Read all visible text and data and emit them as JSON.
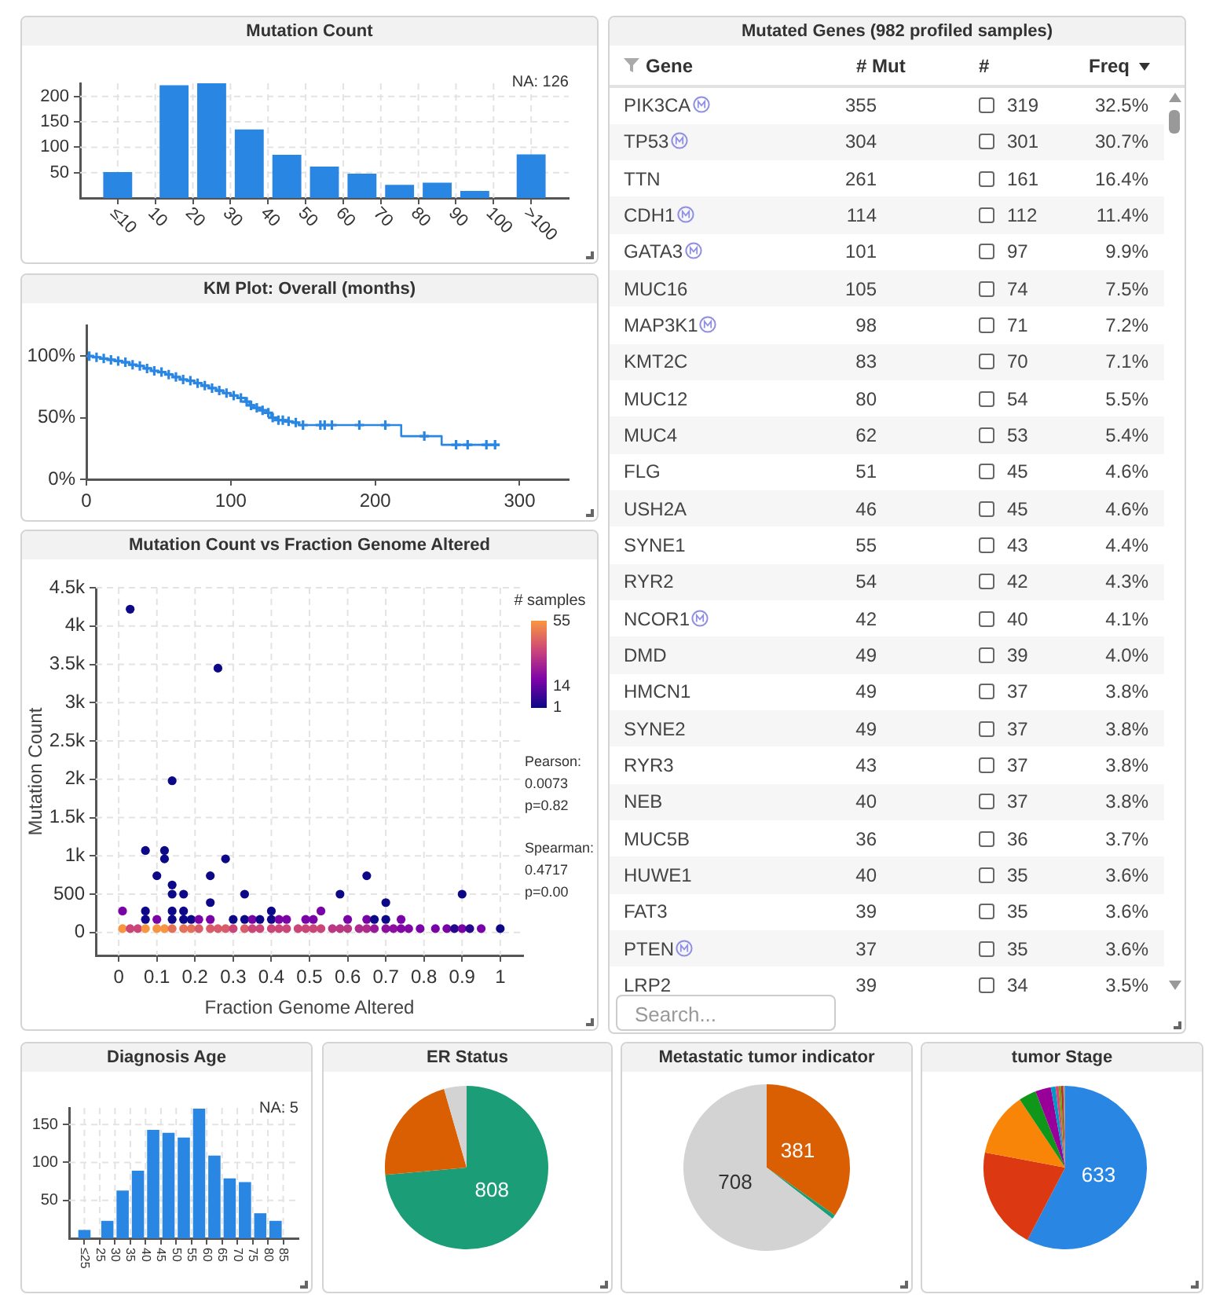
{
  "chart_data": [
    {
      "type": "bar",
      "title": "Mutation Count",
      "x": [
        0,
        15,
        25,
        35,
        45,
        55,
        65,
        75,
        85,
        95,
        110
      ],
      "values": [
        51,
        222,
        226,
        135,
        85,
        62,
        48,
        26,
        30,
        14,
        86
      ],
      "color": "#2986e2",
      "xlim": [
        -10,
        120
      ],
      "xticks": [
        {
          "value": 0,
          "label": "≤10"
        },
        10,
        20,
        30,
        40,
        50,
        60,
        70,
        80,
        90,
        100,
        {
          "value": 110,
          "label": ">100"
        }
      ],
      "ylim": [
        0,
        226
      ],
      "yticks": [
        50,
        100,
        150,
        200
      ],
      "grid": true,
      "annotations": [
        "NA: 126"
      ]
    },
    {
      "type": "other",
      "title": "Mutated Genes (982 profiled samples)",
      "xlabel": "Gene",
      "categories": [
        "PIK3CA",
        "TP53",
        "TTN",
        "CDH1",
        "GATA3",
        "MUC16",
        "MAP3K1",
        "KMT2C",
        "MUC12",
        "MUC4",
        "FLG",
        "USH2A",
        "SYNE1",
        "RYR2",
        "NCOR1",
        "DMD",
        "HMCN1",
        "SYNE2",
        "RYR3",
        "NEB",
        "MUC5B",
        "HUWE1",
        "FAT3",
        "PTEN",
        "LRP2"
      ],
      "series": [
        {
          "colors": [
            "#ffffff",
            "#f6f6f6",
            "#ffffff",
            "#f6f6f6",
            "#ffffff",
            "#f6f6f6",
            "#ffffff",
            "#f6f6f6",
            "#ffffff",
            "#f6f6f6",
            "#ffffff",
            "#f6f6f6",
            "#ffffff",
            "#f6f6f6",
            "#ffffff",
            "#f6f6f6",
            "#ffffff",
            "#f6f6f6",
            "#ffffff",
            "#f6f6f6",
            "#ffffff",
            "#f6f6f6",
            "#ffffff",
            "#f6f6f6",
            "#ffffff"
          ],
          "values": [
            355,
            304,
            261,
            114,
            101,
            105,
            98,
            83,
            80,
            62,
            51,
            46,
            55,
            54,
            42,
            49,
            49,
            49,
            43,
            40,
            36,
            40,
            39,
            37,
            39
          ]
        },
        {
          "colors": [
            "#ffffff",
            "#f6f6f6",
            "#ffffff",
            "#f6f6f6",
            "#ffffff",
            "#f6f6f6",
            "#ffffff",
            "#f6f6f6",
            "#ffffff",
            "#f6f6f6",
            "#ffffff",
            "#f6f6f6",
            "#ffffff",
            "#f6f6f6",
            "#ffffff",
            "#f6f6f6",
            "#ffffff",
            "#f6f6f6",
            "#ffffff",
            "#f6f6f6",
            "#ffffff",
            "#f6f6f6",
            "#ffffff",
            "#f6f6f6",
            "#ffffff"
          ],
          "values": [
            319,
            301,
            161,
            112,
            97,
            74,
            71,
            70,
            54,
            53,
            45,
            45,
            43,
            42,
            40,
            39,
            37,
            37,
            37,
            37,
            36,
            35,
            35,
            35,
            34
          ]
        },
        {
          "colors": [
            "#ffffff",
            "#f6f6f6",
            "#ffffff",
            "#f6f6f6",
            "#ffffff",
            "#f6f6f6",
            "#ffffff",
            "#f6f6f6",
            "#ffffff",
            "#f6f6f6",
            "#ffffff",
            "#f6f6f6",
            "#ffffff",
            "#f6f6f6",
            "#ffffff",
            "#f6f6f6",
            "#ffffff",
            "#f6f6f6",
            "#ffffff",
            "#f6f6f6",
            "#ffffff",
            "#f6f6f6",
            "#ffffff",
            "#f6f6f6",
            "#ffffff"
          ],
          "values": [
            32.5,
            30.7,
            16.4,
            11.4,
            9.9,
            7.5,
            7.2,
            7.1,
            5.5,
            5.4,
            4.6,
            4.6,
            4.4,
            4.3,
            4.1,
            4.0,
            3.8,
            3.8,
            3.8,
            3.8,
            3.7,
            3.6,
            3.6,
            3.6,
            3.5
          ],
          "value_labels": [
            "32.5%",
            "30.7%",
            "16.4%",
            "11.4%",
            "9.9%",
            "7.5%",
            "7.2%",
            "7.1%",
            "5.5%",
            "5.4%",
            "4.6%",
            "4.6%",
            "4.4%",
            "4.3%",
            "4.1%",
            "4.0%",
            "3.8%",
            "3.8%",
            "3.8%",
            "3.8%",
            "3.7%",
            "3.6%",
            "3.6%",
            "3.6%",
            "3.5%"
          ]
        }
      ],
      "data_labels": true,
      "annotations": [
        "# Mut",
        "#",
        "Freq",
        "Search..."
      ]
    },
    {
      "type": "step",
      "title": "KM Plot: Overall (months)",
      "series": [
        {
          "type": "step",
          "color": "#2986e2",
          "x": [
            0,
            5,
            10,
            15,
            20,
            25,
            30,
            35,
            40,
            45,
            50,
            55,
            60,
            65,
            70,
            75,
            80,
            85,
            90,
            95,
            100,
            105,
            110,
            113,
            116,
            120,
            125,
            128,
            131,
            138,
            143,
            147,
            218,
            246,
            286
          ],
          "values": [
            100,
            99,
            98,
            97,
            96,
            95,
            93,
            92,
            90,
            88,
            87,
            85,
            83,
            81,
            80,
            78,
            76,
            74,
            72,
            70,
            68,
            66,
            63,
            60,
            58,
            56,
            54,
            50,
            48,
            47,
            46,
            44,
            35,
            28,
            28
          ]
        },
        {
          "type": "scatter",
          "marker": "cross",
          "color": "#2986e2",
          "x": [
            2,
            7,
            12,
            17,
            22,
            27,
            32,
            37,
            42,
            47,
            52,
            57,
            62,
            67,
            72,
            77,
            82,
            87,
            92,
            97,
            102,
            107,
            111,
            114,
            118,
            122,
            126,
            129,
            133,
            136,
            140,
            145,
            150,
            162,
            165,
            170,
            189,
            207,
            234,
            256,
            264,
            277,
            283
          ],
          "values": [
            100,
            99,
            98,
            97,
            96,
            95,
            93,
            92,
            90,
            88,
            87,
            85,
            83,
            81,
            80,
            78,
            76,
            74,
            72,
            70,
            68,
            66,
            63,
            60,
            58,
            56,
            54,
            50,
            48,
            48,
            47,
            46,
            44,
            44,
            44,
            44,
            44,
            44,
            35,
            28,
            28,
            28,
            28
          ]
        }
      ],
      "xlim": [
        0,
        334
      ],
      "xticks": [
        0,
        100,
        200,
        300
      ],
      "ylim": [
        0,
        125
      ],
      "yticks": [
        {
          "value": 0,
          "label": "0%"
        },
        {
          "value": 50,
          "label": "50%"
        },
        {
          "value": 100,
          "label": "100%"
        }
      ]
    },
    {
      "type": "scatter",
      "title": "Mutation Count vs Fraction Genome Altered",
      "xlabel": "Fraction Genome Altered",
      "ylabel": "Mutation Count",
      "clabel": "# samples",
      "marker": "circle",
      "x": [
        0.03,
        0.26,
        0.14,
        0.07,
        0.12,
        0.12,
        0.1,
        0.28,
        0.24,
        0.14,
        0.14,
        0.17,
        0.24,
        0.33,
        0.58,
        0.65,
        0.7,
        0.9,
        0.01,
        0.07,
        0.14,
        0.17,
        0.4,
        0.53,
        0.07,
        0.1,
        0.14,
        0.17,
        0.19,
        0.21,
        0.24,
        0.3,
        0.33,
        0.35,
        0.37,
        0.4,
        0.42,
        0.44,
        0.49,
        0.51,
        0.6,
        0.65,
        0.67,
        0.7,
        0.74,
        0.01,
        0.03,
        0.05,
        0.07,
        0.1,
        0.12,
        0.14,
        0.17,
        0.19,
        0.21,
        0.24,
        0.26,
        0.28,
        0.3,
        0.33,
        0.35,
        0.37,
        0.4,
        0.42,
        0.44,
        0.47,
        0.49,
        0.51,
        0.53,
        0.56,
        0.58,
        0.6,
        0.63,
        0.65,
        0.67,
        0.7,
        0.72,
        0.74,
        0.76,
        0.79,
        0.83,
        0.86,
        0.88,
        0.9,
        0.92,
        0.95,
        1
      ],
      "values": [
        4220,
        3450,
        1980,
        1070,
        1070,
        960,
        740,
        960,
        740,
        620,
        500,
        500,
        390,
        500,
        500,
        740,
        390,
        500,
        280,
        280,
        280,
        280,
        280,
        280,
        170,
        170,
        170,
        170,
        170,
        170,
        170,
        170,
        170,
        170,
        170,
        170,
        170,
        170,
        170,
        170,
        170,
        170,
        170,
        170,
        170,
        50,
        50,
        50,
        50,
        50,
        50,
        50,
        50,
        50,
        50,
        50,
        50,
        50,
        50,
        50,
        50,
        50,
        50,
        50,
        50,
        50,
        50,
        50,
        50,
        50,
        50,
        50,
        50,
        50,
        50,
        50,
        50,
        50,
        50,
        50,
        50,
        50,
        50,
        50,
        50,
        50,
        50
      ],
      "cvalues": [
        1,
        1,
        1,
        1,
        1,
        1,
        1,
        1,
        1,
        1,
        1,
        1,
        1,
        1,
        1,
        1,
        1,
        1,
        18,
        1,
        1,
        1,
        1,
        18,
        1,
        18,
        1,
        1,
        1,
        18,
        18,
        1,
        1,
        18,
        1,
        1,
        18,
        18,
        18,
        18,
        18,
        18,
        1,
        1,
        18,
        55,
        37,
        37,
        55,
        55,
        55,
        47,
        47,
        47,
        42,
        42,
        42,
        42,
        37,
        42,
        37,
        37,
        37,
        37,
        37,
        37,
        37,
        37,
        37,
        33,
        33,
        33,
        30,
        30,
        25,
        22,
        22,
        20,
        20,
        18,
        18,
        18,
        5,
        18,
        5,
        18,
        1
      ],
      "clim": [
        1,
        55
      ],
      "cticks": [
        1,
        14,
        55
      ],
      "xlim": [
        -0.06,
        1.06
      ],
      "xticks": [
        0,
        0.1,
        0.2,
        0.3,
        0.4,
        0.5,
        0.6,
        0.7,
        0.8,
        0.9,
        1
      ],
      "ylim": [
        -300,
        4500
      ],
      "yticks": [
        0,
        500,
        {
          "value": 1000,
          "label": "1k"
        },
        {
          "value": 1500,
          "label": "1.5k"
        },
        {
          "value": 2000,
          "label": "2k"
        },
        {
          "value": 2500,
          "label": "2.5k"
        },
        {
          "value": 3000,
          "label": "3k"
        },
        {
          "value": 3500,
          "label": "3.5k"
        },
        {
          "value": 4000,
          "label": "4k"
        },
        {
          "value": 4500,
          "label": "4.5k"
        }
      ],
      "grid": true,
      "annotations": [
        "Pearson:",
        "0.0073",
        "p=0.82",
        "Spearman:",
        "0.4717",
        "p=0.00"
      ]
    },
    {
      "type": "bar",
      "title": "Diagnosis Age",
      "x": [
        20,
        27.5,
        32.5,
        37.5,
        42.5,
        47.5,
        52.5,
        57.5,
        62.5,
        67.5,
        72.5,
        77.5,
        82.5
      ],
      "values": [
        11,
        23,
        63,
        89,
        143,
        139,
        133,
        171,
        109,
        79,
        74,
        33,
        23
      ],
      "color": "#2986e2",
      "xlim": [
        15,
        90
      ],
      "xticks": [
        {
          "value": 20,
          "label": "≤25"
        },
        25,
        30,
        35,
        40,
        45,
        50,
        55,
        60,
        65,
        70,
        75,
        80,
        85
      ],
      "ylim": [
        0,
        172
      ],
      "yticks": [
        50,
        100,
        150
      ],
      "grid": true,
      "annotations": [
        "NA: 5"
      ]
    },
    {
      "type": "pie",
      "title": "ER Status",
      "categories": [
        null,
        null,
        null
      ],
      "values": [
        808,
        241,
        49
      ],
      "colors": [
        "#1b9e77",
        "#d95f02",
        "#d3d3d3"
      ],
      "value_labels": [
        "808",
        null,
        null
      ]
    },
    {
      "type": "pie",
      "title": "Metastatic tumor indicator",
      "categories": [
        null,
        null,
        null
      ],
      "values": [
        381,
        9,
        708
      ],
      "colors": [
        "#d95f02",
        "#1b9e77",
        "#d3d3d3"
      ],
      "value_labels": [
        "381",
        null,
        "708"
      ]
    },
    {
      "type": "pie",
      "title": "tumor Stage",
      "categories": [
        null,
        null,
        null,
        null,
        null,
        null,
        null,
        null,
        null,
        null
      ],
      "values": [
        633,
        223,
        139,
        38,
        34,
        10,
        7,
        5,
        5,
        4
      ],
      "colors": [
        "#2986e2",
        "#dc3912",
        "#f88508",
        "#109618",
        "#990099",
        "#0099c6",
        "#dd4477",
        "#66aa00",
        "#b82e2e",
        "#999999"
      ],
      "value_labels": [
        "633",
        null,
        null,
        null,
        null,
        null,
        null,
        null,
        null,
        null
      ]
    }
  ]
}
